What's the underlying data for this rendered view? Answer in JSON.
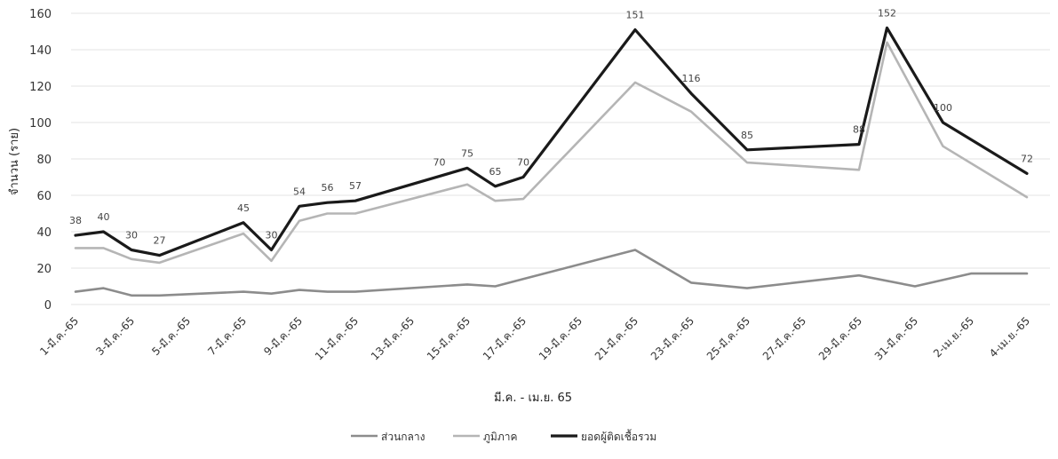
{
  "chart_data": {
    "type": "line",
    "xlabel": "มี.ค. - เม.ย. 65",
    "ylabel": "จำนวน (ราย)",
    "ylim": [
      0,
      160
    ],
    "yticks": [
      0,
      20,
      40,
      60,
      80,
      100,
      120,
      140,
      160
    ],
    "grid": true,
    "legend_position": "bottom",
    "x_labels": [
      "1-มี.ค.-65",
      "3-มี.ค.-65",
      "5-มี.ค.-65",
      "7-มี.ค.-65",
      "9-มี.ค.-65",
      "11-มี.ค.-65",
      "13-มี.ค.-65",
      "15-มี.ค.-65",
      "17-มี.ค.-65",
      "19-มี.ค.-65",
      "21-มี.ค.-65",
      "23-มี.ค.-65",
      "25-มี.ค.-65",
      "27-มี.ค.-65",
      "29-มี.ค.-65",
      "31-มี.ค.-65",
      "2-เม.ย.-65",
      "4-เม.ย.-65"
    ],
    "series": [
      {
        "name": "ส่วนกลาง",
        "color": "#8c8c8c",
        "points": [
          [
            1,
            7
          ],
          [
            2,
            9
          ],
          [
            3,
            5
          ],
          [
            4,
            5
          ],
          [
            7,
            7
          ],
          [
            8,
            6
          ],
          [
            9,
            8
          ],
          [
            10,
            7
          ],
          [
            11,
            7
          ],
          [
            15,
            11
          ],
          [
            16,
            10
          ],
          [
            17,
            14
          ],
          [
            21,
            30
          ],
          [
            23,
            12
          ],
          [
            25,
            9
          ],
          [
            29,
            16
          ],
          [
            31,
            10
          ],
          [
            33,
            17
          ],
          [
            35,
            17
          ]
        ]
      },
      {
        "name": "ภูมิภาค",
        "color": "#b5b5b5",
        "points": [
          [
            1,
            31
          ],
          [
            2,
            31
          ],
          [
            3,
            25
          ],
          [
            4,
            23
          ],
          [
            7,
            39
          ],
          [
            8,
            24
          ],
          [
            9,
            46
          ],
          [
            10,
            50
          ],
          [
            11,
            50
          ],
          [
            15,
            66
          ],
          [
            16,
            57
          ],
          [
            17,
            58
          ],
          [
            21,
            122
          ],
          [
            23,
            106
          ],
          [
            25,
            78
          ],
          [
            29,
            74
          ],
          [
            30,
            144
          ],
          [
            32,
            87
          ],
          [
            35,
            59
          ]
        ]
      },
      {
        "name": "ยอดผู้ติดเชื้อรวม",
        "color": "#1a1a1a",
        "points": [
          [
            1,
            38
          ],
          [
            2,
            40
          ],
          [
            3,
            30
          ],
          [
            4,
            27
          ],
          [
            7,
            45
          ],
          [
            8,
            30
          ],
          [
            9,
            54
          ],
          [
            10,
            56
          ],
          [
            11,
            57
          ],
          [
            15,
            75
          ],
          [
            16,
            65
          ],
          [
            17,
            70
          ],
          [
            21,
            151
          ],
          [
            23,
            116
          ],
          [
            25,
            85
          ],
          [
            29,
            88
          ],
          [
            30,
            152
          ],
          [
            32,
            100
          ],
          [
            35,
            72
          ]
        ],
        "labels": [
          "38",
          "40",
          "30",
          "27",
          "45",
          "30",
          "54",
          "56",
          "57",
          "70",
          "75",
          "65",
          "70",
          "151",
          "116",
          "85",
          "88",
          "152",
          "100",
          "72"
        ],
        "label_points": [
          [
            1,
            38
          ],
          [
            2,
            40
          ],
          [
            3,
            30
          ],
          [
            4,
            27
          ],
          [
            7,
            45
          ],
          [
            8,
            30
          ],
          [
            9,
            54
          ],
          [
            10,
            56
          ],
          [
            11,
            57
          ],
          [
            14,
            70
          ],
          [
            15,
            75
          ],
          [
            16,
            65
          ],
          [
            17,
            70
          ],
          [
            21,
            151
          ],
          [
            23,
            116
          ],
          [
            25,
            85
          ],
          [
            29,
            88
          ],
          [
            30,
            152
          ],
          [
            32,
            100
          ],
          [
            35,
            72
          ]
        ]
      }
    ]
  }
}
